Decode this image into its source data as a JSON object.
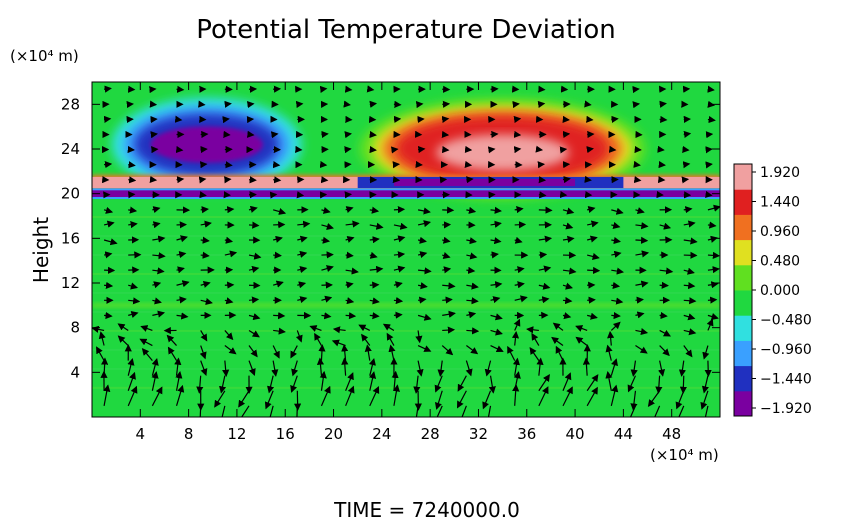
{
  "chart_data": {
    "type": "heatmap",
    "title": "Potential Temperature Deviation",
    "ylabel": "Height",
    "x_unit": "(×10⁴ m)",
    "y_unit": "(×10⁴ m)",
    "xlim": [
      0,
      52
    ],
    "ylim": [
      0,
      30
    ],
    "x_ticks": [
      "4",
      "8",
      "12",
      "16",
      "20",
      "24",
      "28",
      "32",
      "36",
      "40",
      "44",
      "48"
    ],
    "y_ticks": [
      "4",
      "8",
      "12",
      "16",
      "20",
      "24",
      "28"
    ],
    "colorbar": {
      "range": [
        -1.92,
        1.92
      ],
      "tick_labels": [
        "1.920",
        "1.440",
        "0.960",
        "0.480",
        "0.000",
        "−0.480",
        "−0.960",
        "−1.440",
        "−1.920"
      ],
      "colors": [
        "#7a00a0",
        "#2030c0",
        "#3aa0ff",
        "#30e0e0",
        "#20d840",
        "#60e020",
        "#e0e020",
        "#f07020",
        "#e02020",
        "#f0a0a0"
      ]
    },
    "features": [
      {
        "type": "cold_cell",
        "x": [
          2,
          17
        ],
        "y": [
          21.5,
          28
        ],
        "value": -1.92
      },
      {
        "type": "warm_cell",
        "x": [
          23,
          45
        ],
        "y": [
          21.5,
          28
        ],
        "value": 1.92
      },
      {
        "type": "warm_band",
        "x": [
          0,
          52
        ],
        "y": [
          20.5,
          21.5
        ],
        "value": 1.5
      },
      {
        "type": "cold_band",
        "x": [
          0,
          52
        ],
        "y": [
          19.7,
          20.3
        ],
        "value": -1.9
      }
    ],
    "background_value": 0.0,
    "vectors": "wind field arrows overlaid",
    "footer": "TIME  =  7240000.0"
  }
}
